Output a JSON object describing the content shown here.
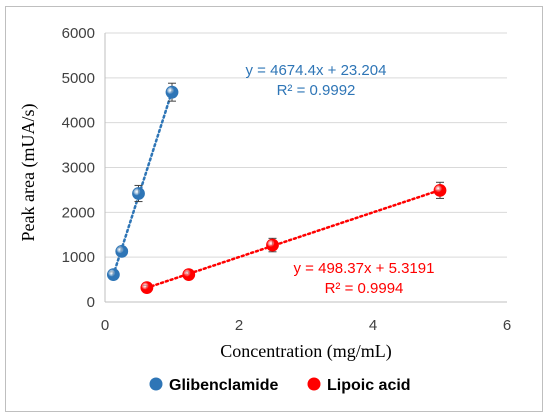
{
  "chart_data": {
    "type": "scatter",
    "xlabel": "Concentration (mg/mL)",
    "ylabel": "Peak area (mUA/s)",
    "xlim": [
      0,
      6
    ],
    "ylim": [
      0,
      6000
    ],
    "x_ticks": [
      0,
      2,
      4,
      6
    ],
    "y_ticks": [
      0,
      1000,
      2000,
      3000,
      4000,
      5000,
      6000
    ],
    "grid": "horizontal",
    "legend_position": "bottom",
    "series": [
      {
        "name": "Glibenclamide",
        "color": "#2e75b6",
        "x": [
          0.125,
          0.25,
          0.5,
          1.0
        ],
        "y": [
          610,
          1130,
          2420,
          4680
        ],
        "error": [
          60,
          80,
          180,
          200
        ],
        "trendline": {
          "equation": "y = 4674.4x + 23.204",
          "r_squared": "R² = 0.9992",
          "slope": 4674.4,
          "intercept": 23.204,
          "x_range": [
            0.125,
            1.0
          ],
          "style": "dotted"
        }
      },
      {
        "name": "Lipoic acid",
        "color": "#ff0000",
        "x": [
          0.625,
          1.25,
          2.5,
          5.0
        ],
        "y": [
          320,
          610,
          1270,
          2490
        ],
        "error": [
          50,
          60,
          150,
          180
        ],
        "trendline": {
          "equation": "y = 498.37x + 5.3191",
          "r_squared": "R² = 0.9994",
          "slope": 498.37,
          "intercept": 5.3191,
          "x_range": [
            0.625,
            5.0
          ],
          "style": "dotted"
        }
      }
    ]
  }
}
